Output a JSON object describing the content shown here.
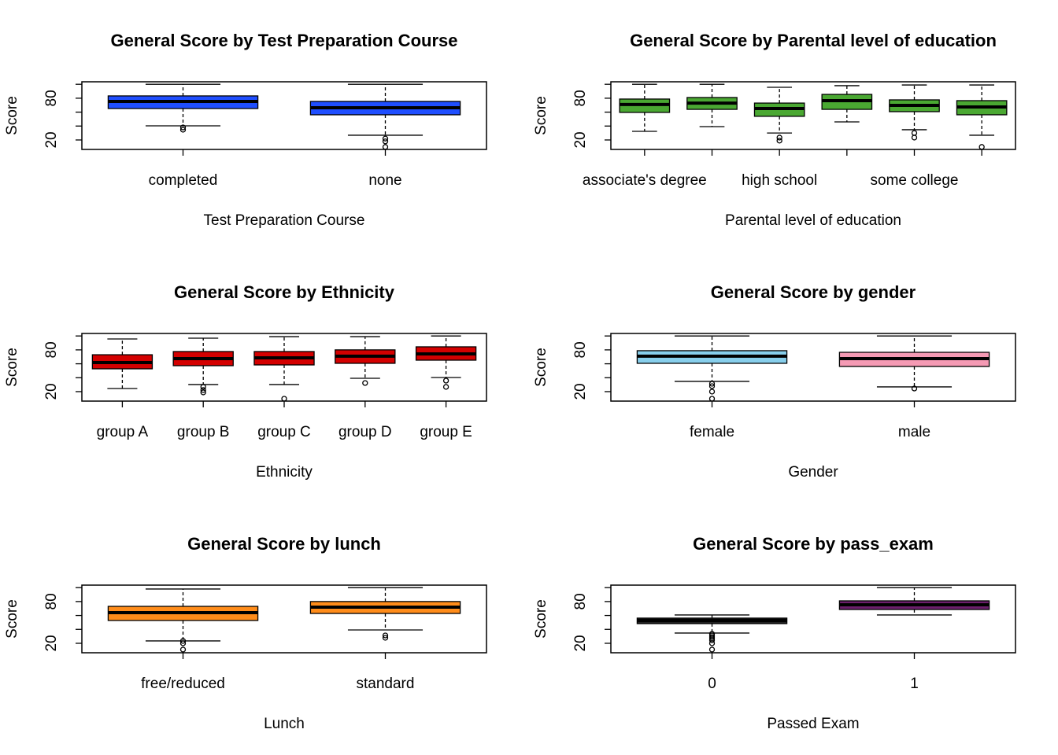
{
  "chart_data": [
    {
      "type": "box",
      "title": "General Score by Test Preparation Course",
      "xlabel": "Test Preparation Course",
      "ylabel": "Score",
      "categories": [
        "completed",
        "none"
      ],
      "colors": [
        "#1f4eff",
        "#1f4eff"
      ],
      "boxes": [
        {
          "whislo": 40.3,
          "q1": 65.2,
          "med": 75.4,
          "q3": 83.3,
          "whishi": 100,
          "fliers": [
            38,
            34.7
          ]
        },
        {
          "whislo": 26.8,
          "q1": 56.2,
          "med": 66.3,
          "q3": 75.4,
          "whishi": 100,
          "fliers": [
            22,
            18,
            10
          ]
        }
      ],
      "ylim": [
        6.4,
        103.6
      ],
      "yticks": [
        20,
        80
      ],
      "minor_yticks": [
        40,
        60,
        100
      ]
    },
    {
      "type": "box",
      "title": "General Score by Parental level of education",
      "xlabel": "Parental level of education",
      "ylabel": "Score",
      "categories": [
        "associate's degree",
        null,
        "high school",
        null,
        "some college",
        null
      ],
      "colors": [
        "#4aa832",
        "#4aa832",
        "#4aa832",
        "#4aa832",
        "#4aa832",
        "#4aa832"
      ],
      "boxes": [
        {
          "whislo": 32.4,
          "q1": 59.6,
          "med": 70.9,
          "q3": 78.8,
          "whishi": 100,
          "fliers": []
        },
        {
          "whislo": 39.2,
          "q1": 64,
          "med": 73,
          "q3": 81,
          "whishi": 100,
          "fliers": []
        },
        {
          "whislo": 30,
          "q1": 54,
          "med": 65.2,
          "q3": 73,
          "whishi": 95.7,
          "fliers": [
            23.4,
            19
          ]
        },
        {
          "whislo": 46,
          "q1": 64,
          "med": 76.5,
          "q3": 85.5,
          "whishi": 98,
          "fliers": []
        },
        {
          "whislo": 34.7,
          "q1": 60.7,
          "med": 69.7,
          "q3": 77.6,
          "whishi": 99,
          "fliers": [
            30,
            23.4
          ]
        },
        {
          "whislo": 26.8,
          "q1": 56.2,
          "med": 67.5,
          "q3": 76.5,
          "whishi": 99,
          "fliers": [
            10
          ]
        }
      ],
      "ylim": [
        6.4,
        103.6
      ],
      "yticks": [
        20,
        80
      ],
      "minor_yticks": [
        40,
        60,
        100
      ]
    },
    {
      "type": "box",
      "title": "General Score by Ethnicity",
      "xlabel": "Ethnicity",
      "ylabel": "Score",
      "categories": [
        "group A",
        "group B",
        "group C",
        "group D",
        "group E"
      ],
      "colors": [
        "#d40000",
        "#d40000",
        "#d40000",
        "#d40000",
        "#d40000"
      ],
      "boxes": [
        {
          "whislo": 24.5,
          "q1": 52.8,
          "med": 61.8,
          "q3": 73,
          "whishi": 95.7,
          "fliers": []
        },
        {
          "whislo": 30.2,
          "q1": 57.3,
          "med": 67.5,
          "q3": 77.6,
          "whishi": 96.8,
          "fliers": [
            26.8,
            22.3,
            18.9
          ]
        },
        {
          "whislo": 30.2,
          "q1": 58.4,
          "med": 68.6,
          "q3": 77.6,
          "whishi": 99,
          "fliers": [
            9.8
          ]
        },
        {
          "whislo": 39.2,
          "q1": 60.7,
          "med": 70.9,
          "q3": 80,
          "whishi": 99,
          "fliers": [
            32.4
          ]
        },
        {
          "whislo": 40.3,
          "q1": 65.2,
          "med": 74.2,
          "q3": 84.4,
          "whishi": 100,
          "fliers": [
            35.8,
            26.8
          ]
        }
      ],
      "ylim": [
        6.4,
        103.6
      ],
      "yticks": [
        20,
        80
      ],
      "minor_yticks": [
        40,
        60,
        100
      ]
    },
    {
      "type": "box",
      "title": "General Score by gender",
      "xlabel": "Gender",
      "ylabel": "Score",
      "categories": [
        "female",
        "male"
      ],
      "colors": [
        "#87ceeb",
        "#f59ab4"
      ],
      "boxes": [
        {
          "whislo": 34.7,
          "q1": 60.7,
          "med": 70.9,
          "q3": 78.8,
          "whishi": 100,
          "fliers": [
            31.3,
            27.9,
            20,
            9.8
          ]
        },
        {
          "whislo": 26.8,
          "q1": 56.2,
          "med": 67.5,
          "q3": 76.5,
          "whishi": 100,
          "fliers": [
            24.5
          ]
        }
      ],
      "ylim": [
        6.4,
        103.6
      ],
      "yticks": [
        20,
        80
      ],
      "minor_yticks": [
        40,
        60,
        100
      ]
    },
    {
      "type": "box",
      "title": "General Score by lunch",
      "xlabel": "Lunch",
      "ylabel": "Score",
      "categories": [
        "free/reduced",
        "standard"
      ],
      "colors": [
        "#ff8c1a",
        "#ff8c1a"
      ],
      "boxes": [
        {
          "whislo": 23.4,
          "q1": 52.8,
          "med": 64,
          "q3": 73.1,
          "whishi": 98,
          "fliers": [
            23.4,
            20,
            11
          ]
        },
        {
          "whislo": 39.2,
          "q1": 62.9,
          "med": 72,
          "q3": 80,
          "whishi": 100,
          "fliers": [
            31.3,
            27.9
          ]
        }
      ],
      "ylim": [
        6.4,
        103.6
      ],
      "yticks": [
        20,
        80
      ],
      "minor_yticks": [
        40,
        60,
        100
      ]
    },
    {
      "type": "box",
      "title": "General Score by pass_exam",
      "xlabel": "Passed Exam",
      "ylabel": "Score",
      "categories": [
        "0",
        "1"
      ],
      "colors": [
        "#222222",
        "#6b1f6b"
      ],
      "boxes": [
        {
          "whislo": 34.7,
          "q1": 48.3,
          "med": 52.8,
          "q3": 56.2,
          "whishi": 60.7,
          "fliers": [
            33.6,
            31.3,
            29,
            26.8,
            24.5,
            20,
            11
          ]
        },
        {
          "whislo": 60.7,
          "q1": 68.6,
          "med": 75.4,
          "q3": 81,
          "whishi": 100,
          "fliers": []
        }
      ],
      "ylim": [
        6.4,
        103.6
      ],
      "yticks": [
        20,
        80
      ],
      "minor_yticks": [
        40,
        60,
        100
      ]
    }
  ]
}
